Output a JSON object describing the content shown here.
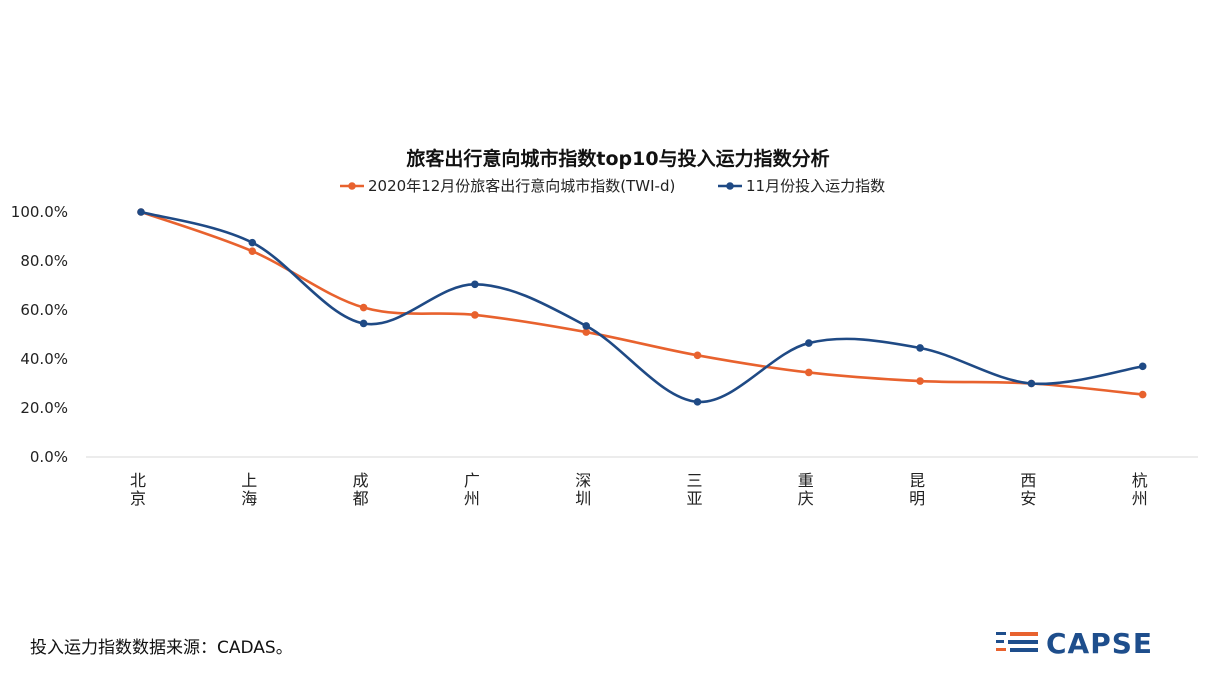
{
  "chart_data": {
    "type": "line",
    "title": "旅客出行意向城市指数top10与投入运力指数分析",
    "categories": [
      "北京",
      "上海",
      "成都",
      "广州",
      "深圳",
      "三亚",
      "重庆",
      "昆明",
      "西安",
      "杭州"
    ],
    "series": [
      {
        "name": "2020年12月份旅客出行意向城市指数(TWI-d)",
        "color": "#e8622e",
        "values": [
          100.0,
          84.0,
          61.0,
          58.0,
          51.0,
          41.5,
          34.5,
          31.0,
          30.0,
          25.5
        ]
      },
      {
        "name": "11月份投入运力指数",
        "color": "#1f4a85",
        "values": [
          100.0,
          87.5,
          54.5,
          70.5,
          53.5,
          22.5,
          46.5,
          44.5,
          30.0,
          37.0
        ]
      }
    ],
    "ylim": [
      0,
      100
    ],
    "yticks": [
      0,
      20,
      40,
      60,
      80,
      100
    ],
    "ytick_labels": [
      "0.0%",
      "20.0%",
      "40.0%",
      "60.0%",
      "80.0%",
      "100.0%"
    ],
    "legend": "top-center"
  },
  "footnote": "投入运力指数数据来源：CADAS。",
  "brand": {
    "name": "CAPSE",
    "color": "#1e4e8c",
    "accent": "#e8622e"
  }
}
